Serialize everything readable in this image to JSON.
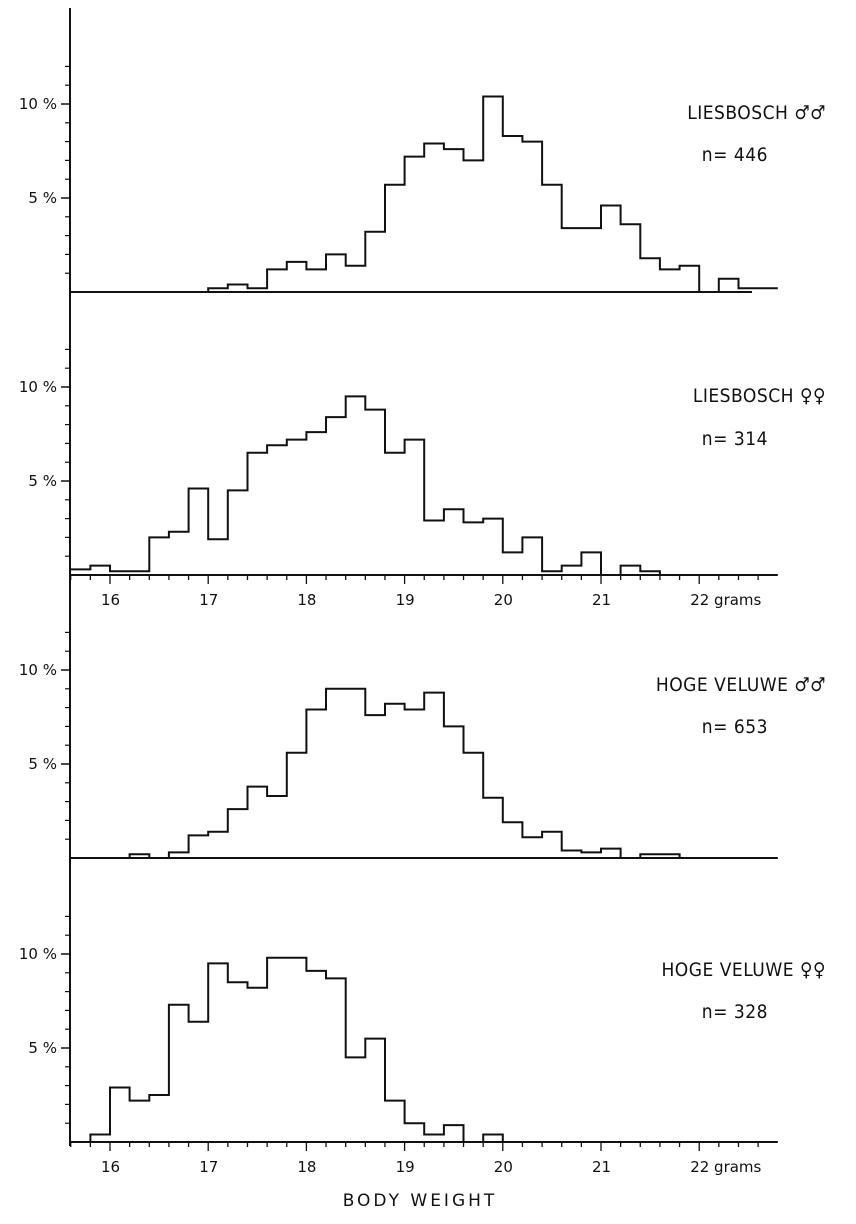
{
  "chart_data": {
    "type": "bar",
    "xlabel": "BODY WEIGHT",
    "x_unit": "grams",
    "bin_width_g": 0.2,
    "bin_starts_g": [
      15.6,
      15.8,
      16.0,
      16.2,
      16.4,
      16.6,
      16.8,
      17.0,
      17.2,
      17.4,
      17.6,
      17.8,
      18.0,
      18.2,
      18.4,
      18.6,
      18.8,
      19.0,
      19.2,
      19.4,
      19.6,
      19.8,
      20.0,
      20.2,
      20.4,
      20.6,
      20.8,
      21.0,
      21.2,
      21.4,
      21.6,
      21.8,
      22.0,
      22.2,
      22.4,
      22.6
    ],
    "xlim": [
      15.6,
      22.9
    ],
    "x_ticks": [
      16,
      17,
      18,
      19,
      20,
      21,
      22
    ],
    "x_tick_labels_lower": [
      "16",
      "17",
      "18",
      "19",
      "20",
      "21",
      "22 grams"
    ],
    "ylim": [
      0,
      12.5
    ],
    "y_ticks": [
      5,
      10
    ],
    "y_tick_labels": [
      "5 %",
      "10 %"
    ],
    "panels": [
      {
        "label": "LIESBOSCH ♂♂",
        "n_label": "n= 446",
        "n": 446,
        "values": [
          0,
          0,
          0,
          0,
          0,
          0,
          0,
          0.2,
          0.4,
          0.2,
          1.2,
          1.6,
          1.2,
          2.0,
          1.4,
          3.2,
          5.7,
          7.2,
          7.9,
          7.6,
          7.0,
          10.4,
          8.3,
          8.0,
          5.7,
          3.4,
          3.4,
          4.6,
          3.6,
          1.8,
          1.2,
          1.4,
          0,
          0.7,
          0.2,
          0.2
        ]
      },
      {
        "label": "LIESBOSCH ♀♀",
        "n_label": "n= 314",
        "n": 314,
        "values": [
          0.3,
          0.5,
          0.2,
          0.2,
          2.0,
          2.3,
          4.6,
          1.9,
          4.5,
          6.5,
          6.9,
          7.2,
          7.6,
          8.4,
          9.5,
          8.8,
          6.5,
          7.2,
          2.9,
          3.5,
          2.8,
          3.0,
          1.2,
          2.0,
          0.2,
          0.5,
          1.2,
          0,
          0.5,
          0.2,
          0,
          0,
          0,
          0,
          0,
          0
        ]
      },
      {
        "label": "HOGE VELUWE ♂♂",
        "n_label": "n= 653",
        "n": 653,
        "values": [
          0,
          0,
          0,
          0.2,
          0,
          0.3,
          1.2,
          1.4,
          2.6,
          3.8,
          3.3,
          5.6,
          7.9,
          9.0,
          9.0,
          7.6,
          8.2,
          7.9,
          8.8,
          7.0,
          5.6,
          3.2,
          1.9,
          1.1,
          1.4,
          0.4,
          0.3,
          0.5,
          0,
          0.2,
          0.2,
          0,
          0,
          0,
          0,
          0
        ]
      },
      {
        "label": "HOGE VELUWE ♀♀",
        "n_label": "n= 328",
        "n": 328,
        "values": [
          0,
          0.4,
          2.9,
          2.2,
          2.5,
          7.3,
          6.4,
          9.5,
          8.5,
          8.2,
          9.8,
          9.8,
          9.1,
          8.7,
          4.5,
          5.5,
          2.2,
          1.0,
          0.4,
          0.9,
          0,
          0.4,
          0,
          0,
          0,
          0,
          0,
          0,
          0,
          0,
          0,
          0,
          0,
          0,
          0,
          0
        ]
      }
    ]
  }
}
